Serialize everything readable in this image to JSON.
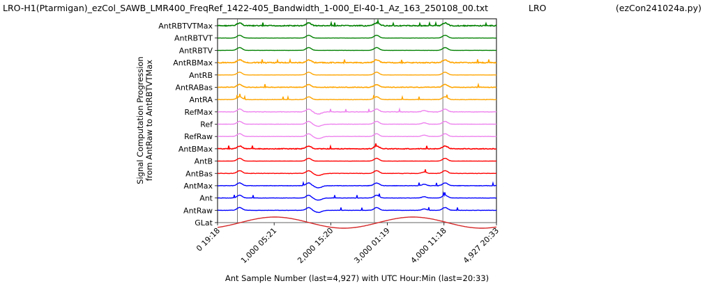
{
  "header": {
    "filename": "LRO-H1(Ptarmigan)_ezCol_SAWB_LMR400_FreqRef_1422-405_Bandwidth_1-000_El-40-1_Az_163_250108_00.txt",
    "site": "LRO",
    "program": "(ezCon241024a.py)"
  },
  "chart_data": {
    "type": "line",
    "title": "",
    "xlabel": "Ant Sample Number (last=4,927) with UTC Hour:Min (last=20:33)",
    "ylabel_line1": "Signal Computation Progression",
    "ylabel_line2": "from AntRaw to AntRBTVTMax",
    "xlim": [
      0,
      4927
    ],
    "xticks": [
      {
        "value": 0,
        "label": "0  19:18"
      },
      {
        "value": 1000,
        "label": "1,000  05:21"
      },
      {
        "value": 2000,
        "label": "2,000  15:20"
      },
      {
        "value": 3000,
        "label": "3,000  01:19"
      },
      {
        "value": 4000,
        "label": "4,000  11:18"
      },
      {
        "value": 4927,
        "label": "4,927  20:33"
      }
    ],
    "vlines": [
      350,
      1570,
      2770,
      3980
    ],
    "series": [
      {
        "name": "AntRBTVTMax",
        "color": "#008000",
        "noise": 0.35
      },
      {
        "name": "AntRBTVT",
        "color": "#008000",
        "noise": 0.05
      },
      {
        "name": "AntRBTV",
        "color": "#008000",
        "noise": 0.05
      },
      {
        "name": "AntRBMax",
        "color": "#ffa500",
        "noise": 0.35
      },
      {
        "name": "AntRB",
        "color": "#ffa500",
        "noise": 0.05
      },
      {
        "name": "AntRABas",
        "color": "#ffa500",
        "noise": 0.2
      },
      {
        "name": "AntRA",
        "color": "#ffa500",
        "noise": 0.15
      },
      {
        "name": "RefMax",
        "color": "#ee82ee",
        "noise": 0.15
      },
      {
        "name": "Ref",
        "color": "#ee82ee",
        "noise": 0.08
      },
      {
        "name": "RefRaw",
        "color": "#ee82ee",
        "noise": 0.08
      },
      {
        "name": "AntBMax",
        "color": "#ff0000",
        "noise": 0.25
      },
      {
        "name": "AntB",
        "color": "#ff0000",
        "noise": 0.05
      },
      {
        "name": "AntBas",
        "color": "#ff0000",
        "noise": 0.12
      },
      {
        "name": "AntMax",
        "color": "#0000ff",
        "noise": 0.15
      },
      {
        "name": "Ant",
        "color": "#0000ff",
        "noise": 0.1
      },
      {
        "name": "AntRaw",
        "color": "#0000ff",
        "noise": 0.1
      },
      {
        "name": "GLat",
        "color": "#d62728",
        "noise": 0
      }
    ]
  }
}
